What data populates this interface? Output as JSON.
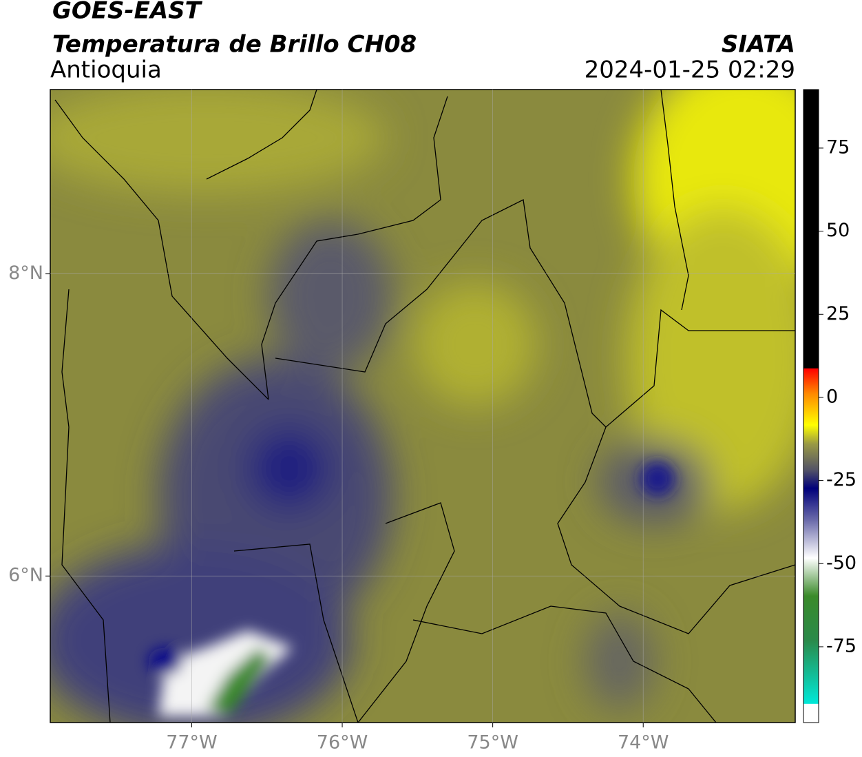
{
  "header": {
    "title": "GOES-EAST",
    "subtitle": "Temperatura de Brillo CH08",
    "region": "Antioquia",
    "source": "SIATA",
    "datetime": "2024-01-25 02:29"
  },
  "map": {
    "xlim": [
      -77.94,
      -72.99
    ],
    "ylim": [
      5.03,
      9.22
    ],
    "xticks": [
      {
        "value": -77,
        "label": "77°W"
      },
      {
        "value": -76,
        "label": "76°W"
      },
      {
        "value": -75,
        "label": "75°W"
      },
      {
        "value": -74,
        "label": "74°W"
      }
    ],
    "yticks": [
      {
        "value": 8,
        "label": "8°N"
      },
      {
        "value": 6,
        "label": "6°N"
      }
    ],
    "grid": true
  },
  "colorbar": {
    "lim": [
      -97.8,
      92.6
    ],
    "ticks": [
      75,
      50,
      25,
      0,
      -25,
      -50,
      -75
    ]
  }
}
